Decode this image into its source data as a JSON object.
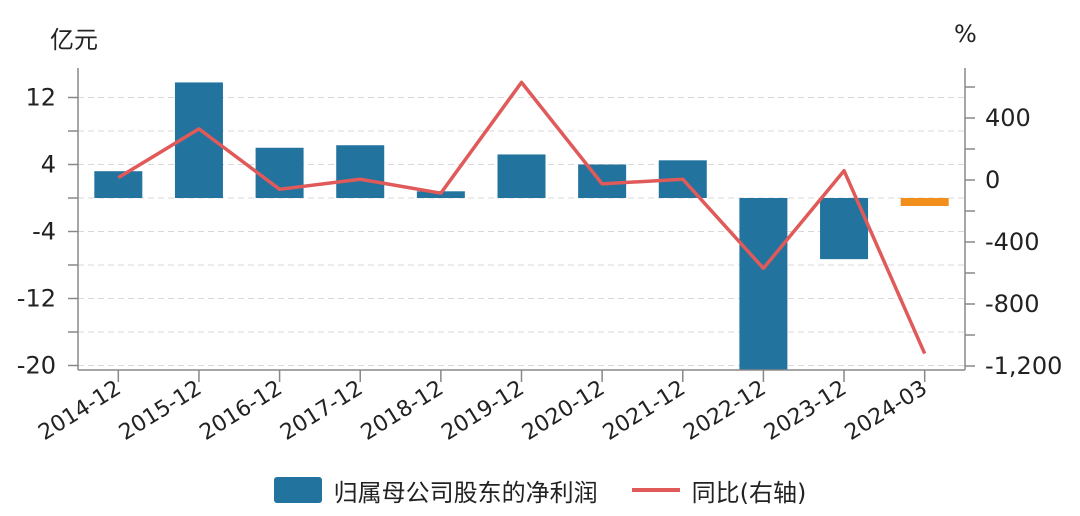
{
  "chart_data": {
    "type": "bar+line",
    "left_unit": "亿元",
    "right_unit": "%",
    "categories": [
      "2014-12",
      "2015-12",
      "2016-12",
      "2017-12",
      "2018-12",
      "2019-12",
      "2020-12",
      "2021-12",
      "2022-12",
      "2023-12",
      "2024-03"
    ],
    "series": [
      {
        "name": "归属母公司股东的净利润",
        "type": "bar",
        "axis": "left",
        "color": "#22739e",
        "highlight_color": "#f28e1c",
        "highlight_index": 10,
        "values": [
          3.2,
          13.8,
          6.0,
          6.3,
          0.8,
          5.2,
          4.0,
          4.5,
          -21.0,
          -7.3,
          -1.0
        ]
      },
      {
        "name": "同比(右轴)",
        "type": "line",
        "axis": "right",
        "color": "#e05a5a",
        "values": [
          15,
          330,
          -60,
          5,
          -85,
          630,
          -25,
          5,
          -570,
          60,
          -1120
        ]
      }
    ],
    "left_axis": {
      "min": -20,
      "max": 12,
      "ticks": [
        12,
        4,
        -4,
        -12,
        -20
      ],
      "tick_labels": [
        "12",
        "4",
        "-4",
        "-12",
        "-20"
      ]
    },
    "right_axis": {
      "ticks": [
        400,
        0,
        -400,
        -800,
        -1200
      ],
      "tick_labels": [
        "400",
        "0",
        "-400",
        "-800",
        "-1,200"
      ]
    },
    "grid": "horizontal dashed"
  }
}
